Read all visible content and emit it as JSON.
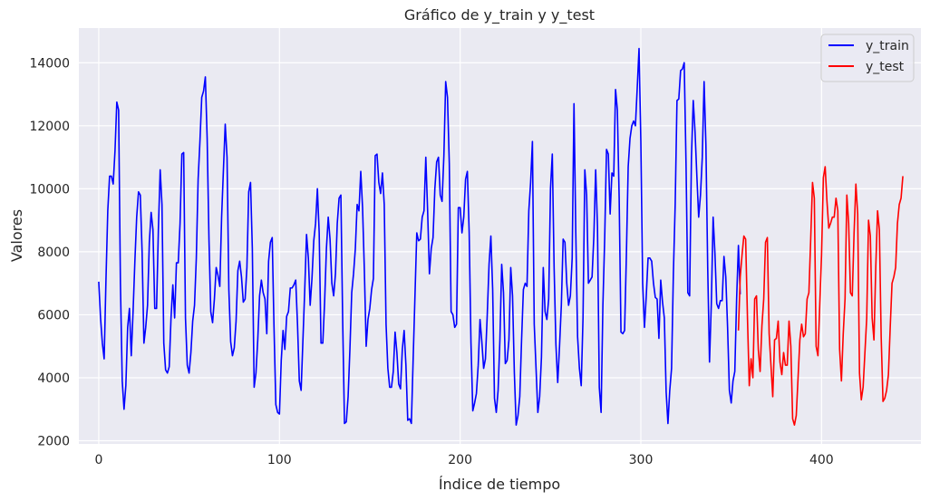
{
  "chart_data": {
    "type": "line",
    "title": "Gráfico de y_train y y_test",
    "xlabel": "Índice de tiempo",
    "ylabel": "Valores",
    "xlim": [
      -11,
      455
    ],
    "ylim": [
      1900,
      15100
    ],
    "xticks": [
      0,
      100,
      200,
      300,
      400
    ],
    "yticks": [
      2000,
      4000,
      6000,
      8000,
      10000,
      12000,
      14000
    ],
    "grid": true,
    "legend_position": "top-right",
    "background": "#eaeaf2",
    "series": [
      {
        "name": "y_train",
        "color": "#0000ff",
        "x_start": 0,
        "values": [
          7050,
          5900,
          5100,
          4600,
          7100,
          9300,
          10400,
          10400,
          10150,
          11200,
          12750,
          12500,
          7000,
          3900,
          3000,
          3750,
          5600,
          6200,
          4700,
          6100,
          7700,
          9100,
          9900,
          9800,
          8000,
          5100,
          5600,
          6300,
          8300,
          9250,
          8700,
          6200,
          6200,
          8700,
          10600,
          9500,
          5100,
          4250,
          4150,
          4350,
          5900,
          6950,
          5900,
          7650,
          7650,
          8900,
          11100,
          11150,
          5900,
          4400,
          4150,
          4800,
          5800,
          6300,
          7800,
          10300,
          11500,
          12900,
          13100,
          13550,
          11600,
          8400,
          6100,
          5750,
          6500,
          7500,
          7250,
          6900,
          9100,
          10600,
          12050,
          11000,
          6800,
          5150,
          4700,
          4950,
          5800,
          7400,
          7700,
          7200,
          6400,
          6500,
          7500,
          9900,
          10200,
          8100,
          3700,
          4150,
          5200,
          6600,
          7100,
          6700,
          6500,
          5400,
          7700,
          8300,
          8450,
          5600,
          3150,
          2900,
          2850,
          4550,
          5500,
          4900,
          5950,
          6100,
          6850,
          6850,
          6950,
          7100,
          5700,
          3900,
          3600,
          5200,
          6800,
          8550,
          7800,
          6300,
          7150,
          8350,
          8900,
          10000,
          8600,
          5100,
          5100,
          6400,
          8100,
          9100,
          8400,
          7000,
          6600,
          7300,
          8900,
          9700,
          9800,
          5800,
          2550,
          2600,
          3400,
          4900,
          6700,
          7300,
          8100,
          9500,
          9300,
          10550,
          9400,
          7400,
          5000,
          5850,
          6200,
          6800,
          7150,
          11050,
          11100,
          10200,
          9850,
          10500,
          9500,
          5700,
          4300,
          3700,
          3700,
          4200,
          5450,
          4800,
          3800,
          3650,
          4900,
          5500,
          4400,
          2650,
          2700,
          2550,
          4600,
          6600,
          8600,
          8350,
          8400,
          9100,
          9300,
          11000,
          9300,
          7300,
          8100,
          8450,
          10000,
          10850,
          11000,
          9800,
          9600,
          11050,
          13400,
          12900,
          10800,
          6100,
          6000,
          5600,
          5700,
          9400,
          9400,
          8600,
          9100,
          10300,
          10550,
          8600,
          5100,
          2950,
          3200,
          3500,
          4400,
          5850,
          5150,
          4300,
          4600,
          6000,
          7600,
          8500,
          6800,
          3350,
          2900,
          3600,
          5200,
          7600,
          6700,
          4450,
          4550,
          5200,
          7500,
          6600,
          4150,
          2500,
          2800,
          3400,
          5200,
          6800,
          7000,
          6900,
          9300,
          10200,
          11500,
          5700,
          4300,
          2900,
          3400,
          4650,
          7500,
          6100,
          5850,
          6500,
          10000,
          11100,
          7500,
          5050,
          3850,
          5000,
          6300,
          8400,
          8300,
          7000,
          6300,
          6600,
          7800,
          12700,
          8600,
          5300,
          4300,
          3750,
          5900,
          10600,
          9800,
          7000,
          7100,
          7200,
          8500,
          10600,
          8800,
          3700,
          2900,
          6300,
          8450,
          11250,
          11100,
          9200,
          10500,
          10400,
          13150,
          12500,
          9700,
          5450,
          5400,
          5500,
          7900,
          10700,
          11600,
          12000,
          12150,
          12000,
          13200,
          14450,
          11500,
          7000,
          5600,
          6600,
          7800,
          7800,
          7700,
          7000,
          6550,
          6500,
          5250,
          7100,
          6400,
          5900,
          3550,
          2550,
          3600,
          4300,
          7300,
          9500,
          12800,
          12850,
          13750,
          13800,
          14000,
          10800,
          6700,
          6600,
          11000,
          12800,
          11800,
          10400,
          9100,
          9800,
          11000,
          13400,
          11400,
          7500,
          4500,
          6350,
          9100,
          7950,
          6350,
          6200,
          6450,
          6450,
          7850,
          7200,
          5600,
          3600,
          3200,
          3900,
          4200,
          6500,
          8200,
          6650
        ]
      },
      {
        "name": "y_test",
        "color": "#ff0000",
        "x_start": 354,
        "values": [
          5500,
          7200,
          7900,
          8500,
          8400,
          5900,
          3750,
          4600,
          4000,
          6500,
          6600,
          4900,
          4200,
          5650,
          6500,
          8300,
          8450,
          5400,
          4400,
          3400,
          5200,
          5250,
          5800,
          4500,
          4100,
          4800,
          4400,
          4400,
          5800,
          5000,
          2700,
          2500,
          2800,
          4000,
          5200,
          5700,
          5300,
          5400,
          6500,
          6700,
          8400,
          10200,
          9700,
          5000,
          4700,
          6300,
          7900,
          10350,
          10700,
          9600,
          8750,
          8900,
          9100,
          9100,
          9700,
          9300,
          4900,
          3900,
          5400,
          6500,
          9800,
          8900,
          6700,
          6600,
          8600,
          10150,
          9200,
          4150,
          3300,
          3700,
          4800,
          5900,
          9000,
          8500,
          5900,
          5200,
          7500,
          9300,
          8700,
          5300,
          3250,
          3350,
          3600,
          4100,
          5600,
          7000,
          7200,
          7500,
          8900,
          9500,
          9700,
          10400
        ]
      }
    ]
  }
}
